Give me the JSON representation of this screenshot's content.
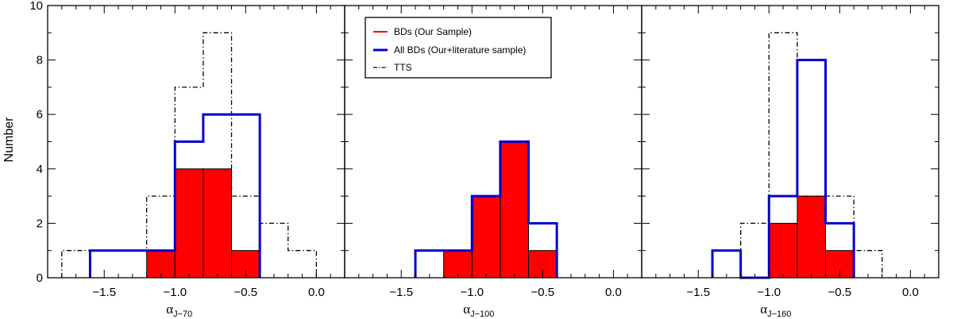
{
  "chart_data": {
    "type": "bar",
    "ylabel": "Number",
    "ylim": [
      0,
      10
    ],
    "y_ticks": [
      "0",
      "2",
      "4",
      "6",
      "8",
      "10"
    ],
    "xlim": [
      -1.9,
      0.2
    ],
    "x_ticks": [
      "−1.5",
      "−1.0",
      "−0.5",
      "0.0"
    ],
    "x_tick_values": [
      -1.5,
      -1.0,
      -0.5,
      0.0
    ],
    "legend": {
      "placement": "top, middle panel",
      "entries": [
        {
          "label": "BDs (Our Sample)",
          "color": "#ff0000",
          "style": "solid"
        },
        {
          "label": "All BDs (Our+literature sample)",
          "color": "#0000cc",
          "style": "solid"
        },
        {
          "label": "TTS",
          "color": "#000000",
          "style": "dashdot"
        }
      ]
    },
    "panels": [
      {
        "xlabel": "α",
        "xlabel_sub": "J−70",
        "bdso": {
          "edges": [
            -1.2,
            -1.0,
            -0.8,
            -0.6,
            -0.4
          ],
          "values": [
            1,
            4,
            4,
            1
          ]
        },
        "allbds": {
          "edges": [
            -1.6,
            -1.4,
            -1.2,
            -1.0,
            -0.8,
            -0.6,
            -0.4
          ],
          "values": [
            1,
            1,
            1,
            5,
            6,
            6
          ]
        },
        "tts": {
          "edges": [
            -1.8,
            -1.6,
            -1.4,
            -1.2,
            -1.0,
            -0.8,
            -0.6,
            -0.4,
            -0.2,
            0.0
          ],
          "values": [
            1,
            1,
            1,
            3,
            7,
            9,
            3,
            2,
            1
          ]
        }
      },
      {
        "xlabel": "α",
        "xlabel_sub": "J−100",
        "bdso": {
          "edges": [
            -1.2,
            -1.0,
            -0.8,
            -0.6,
            -0.4
          ],
          "values": [
            1,
            3,
            5,
            1
          ]
        },
        "allbds": {
          "edges": [
            -1.4,
            -1.2,
            -1.0,
            -0.8,
            -0.6,
            -0.4
          ],
          "values": [
            1,
            1,
            3,
            5,
            2
          ]
        },
        "tts": null
      },
      {
        "xlabel": "α",
        "xlabel_sub": "J−160",
        "bdso": {
          "edges": [
            -1.0,
            -0.8,
            -0.6,
            -0.4
          ],
          "values": [
            2,
            3,
            1
          ]
        },
        "allbds": {
          "edges": [
            -1.4,
            -1.2,
            -1.0,
            -0.8,
            -0.6,
            -0.4
          ],
          "values": [
            1,
            0,
            3,
            8,
            2
          ]
        },
        "tts": {
          "edges": [
            -1.2,
            -1.0,
            -0.8,
            -0.6,
            -0.4,
            -0.2
          ],
          "values": [
            2,
            9,
            3,
            3,
            1
          ]
        }
      }
    ]
  }
}
